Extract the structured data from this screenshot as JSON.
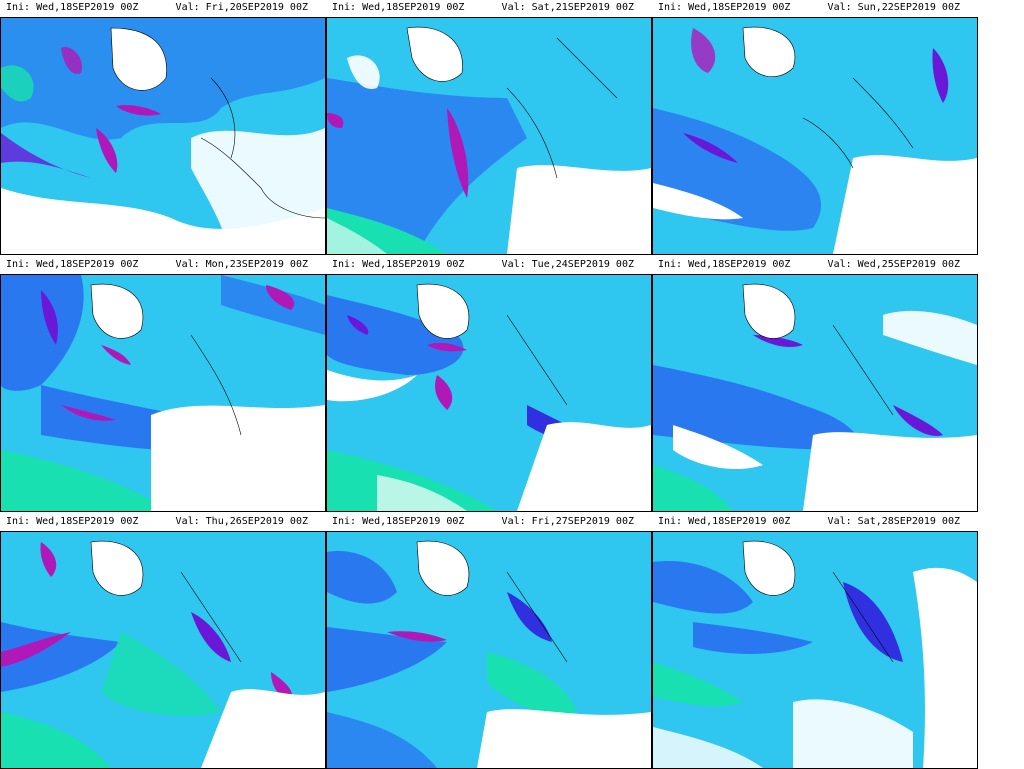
{
  "panels": [
    {
      "ini": "Ini: Wed,18SEP2019 00Z",
      "val": "Val: Fri,20SEP2019 00Z"
    },
    {
      "ini": "Ini: Wed,18SEP2019 00Z",
      "val": "Val: Sat,21SEP2019 00Z"
    },
    {
      "ini": "Ini: Wed,18SEP2019 00Z",
      "val": "Val: Sun,22SEP2019 00Z"
    },
    {
      "ini": "Ini: Wed,18SEP2019 00Z",
      "val": "Val: Mon,23SEP2019 00Z"
    },
    {
      "ini": "Ini: Wed,18SEP2019 00Z",
      "val": "Val: Tue,24SEP2019 00Z"
    },
    {
      "ini": "Ini: Wed,18SEP2019 00Z",
      "val": "Val: Wed,25SEP2019 00Z"
    },
    {
      "ini": "Ini: Wed,18SEP2019 00Z",
      "val": "Val: Thu,26SEP2019 00Z"
    },
    {
      "ini": "Ini: Wed,18SEP2019 00Z",
      "val": "Val: Fri,27SEP2019 00Z"
    },
    {
      "ini": "Ini: Wed,18SEP2019 00Z",
      "val": "Val: Sat,28SEP2019 00Z"
    }
  ],
  "colors": {
    "background": "#ffffff",
    "level_1": "#18e0b0",
    "level_2": "#1ec8f0",
    "level_3": "#2a78f0",
    "level_4": "#3030e0",
    "level_5": "#6a18d8",
    "level_6": "#b018b8",
    "land_outline": "#000000"
  }
}
